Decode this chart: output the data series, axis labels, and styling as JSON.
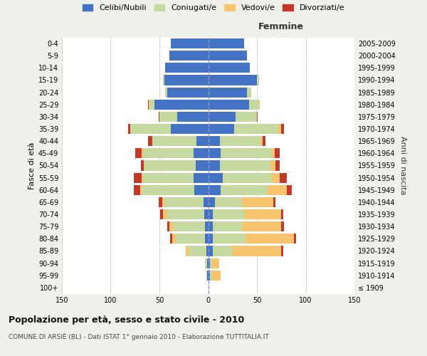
{
  "age_groups": [
    "100+",
    "95-99",
    "90-94",
    "85-89",
    "80-84",
    "75-79",
    "70-74",
    "65-69",
    "60-64",
    "55-59",
    "50-54",
    "45-49",
    "40-44",
    "35-39",
    "30-34",
    "25-29",
    "20-24",
    "15-19",
    "10-14",
    "5-9",
    "0-4"
  ],
  "birth_years": [
    "≤ 1909",
    "1910-1914",
    "1915-1919",
    "1920-1924",
    "1925-1929",
    "1930-1934",
    "1935-1939",
    "1940-1944",
    "1945-1949",
    "1950-1954",
    "1955-1959",
    "1960-1964",
    "1965-1969",
    "1970-1974",
    "1975-1979",
    "1980-1984",
    "1985-1989",
    "1990-1994",
    "1995-1999",
    "2000-2004",
    "2005-2009"
  ],
  "male": {
    "celibe": [
      0,
      1,
      1,
      2,
      3,
      3,
      4,
      5,
      14,
      15,
      13,
      15,
      12,
      38,
      32,
      55,
      42,
      45,
      44,
      40,
      38
    ],
    "coniugato": [
      0,
      1,
      2,
      18,
      30,
      33,
      38,
      40,
      54,
      52,
      52,
      52,
      45,
      42,
      18,
      5,
      2,
      1,
      0,
      0,
      0
    ],
    "vedovo": [
      0,
      0,
      0,
      3,
      4,
      4,
      4,
      2,
      2,
      1,
      1,
      1,
      0,
      0,
      0,
      1,
      0,
      0,
      0,
      0,
      0
    ],
    "divorziato": [
      0,
      0,
      0,
      0,
      2,
      2,
      3,
      4,
      6,
      8,
      3,
      7,
      5,
      2,
      1,
      1,
      0,
      0,
      0,
      0,
      0
    ]
  },
  "female": {
    "nubile": [
      0,
      2,
      2,
      5,
      5,
      5,
      5,
      7,
      13,
      15,
      12,
      13,
      12,
      27,
      28,
      42,
      40,
      50,
      43,
      40,
      37
    ],
    "coniugata": [
      0,
      2,
      2,
      20,
      33,
      30,
      32,
      28,
      48,
      50,
      52,
      52,
      42,
      45,
      22,
      10,
      4,
      2,
      0,
      0,
      0
    ],
    "vedova": [
      1,
      9,
      7,
      50,
      50,
      40,
      38,
      32,
      20,
      8,
      5,
      3,
      2,
      3,
      0,
      1,
      0,
      0,
      0,
      0,
      0
    ],
    "divorziata": [
      0,
      0,
      0,
      2,
      2,
      3,
      2,
      2,
      5,
      8,
      4,
      5,
      3,
      3,
      1,
      0,
      0,
      0,
      0,
      0,
      0
    ]
  },
  "colors": {
    "celibe": "#4472c4",
    "coniugato": "#c5d9a0",
    "vedovo": "#f8c46e",
    "divorziato": "#c0392b"
  },
  "title": "Popolazione per età, sesso e stato civile - 2010",
  "subtitle": "COMUNE DI ARSIÈ (BL) - Dati ISTAT 1° gennaio 2010 - Elaborazione TUTTITALIA.IT",
  "xlabel_right": "Femmine",
  "ylabel_left": "Fasce di età",
  "ylabel_right": "Anni di nascita",
  "xlim": 150,
  "bg_color": "#f0f0eb",
  "plot_bg": "#ffffff",
  "legend_labels": [
    "Celibi/Nubili",
    "Coniugati/e",
    "Vedovi/e",
    "Divorziati/e"
  ]
}
